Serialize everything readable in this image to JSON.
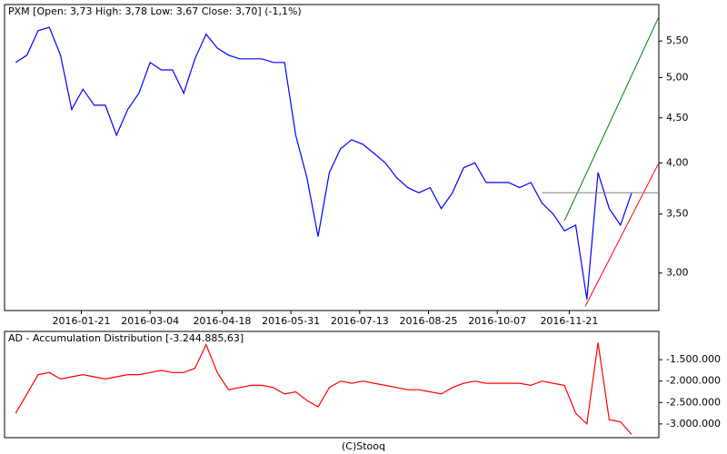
{
  "chart_data": [
    {
      "type": "line",
      "title": "PXM [Open: 3,73  High: 3,78  Low: 3,67  Close: 3,70]  (-1,1%)",
      "x": [
        "2015-12-11",
        "2015-12-18",
        "2015-12-25",
        "2016-01-01",
        "2016-01-08",
        "2016-01-15",
        "2016-01-22",
        "2016-01-29",
        "2016-02-05",
        "2016-02-12",
        "2016-02-19",
        "2016-02-26",
        "2016-03-04",
        "2016-03-11",
        "2016-03-18",
        "2016-03-25",
        "2016-04-01",
        "2016-04-08",
        "2016-04-15",
        "2016-04-22",
        "2016-04-29",
        "2016-05-06",
        "2016-05-13",
        "2016-05-20",
        "2016-05-27",
        "2016-06-03",
        "2016-06-10",
        "2016-06-17",
        "2016-06-24",
        "2016-07-01",
        "2016-07-08",
        "2016-07-15",
        "2016-07-22",
        "2016-07-29",
        "2016-08-05",
        "2016-08-12",
        "2016-08-19",
        "2016-08-26",
        "2016-09-02",
        "2016-09-09",
        "2016-09-16",
        "2016-09-23",
        "2016-09-30",
        "2016-10-07",
        "2016-10-14",
        "2016-10-21",
        "2016-10-28",
        "2016-11-04",
        "2016-11-11",
        "2016-11-18",
        "2016-11-25",
        "2016-12-02",
        "2016-12-09",
        "2016-12-16",
        "2016-12-23",
        "2016-12-30"
      ],
      "values": [
        5.2,
        5.3,
        5.65,
        5.7,
        5.3,
        4.6,
        4.85,
        4.65,
        4.65,
        4.3,
        4.6,
        4.8,
        5.2,
        5.1,
        5.1,
        4.8,
        5.25,
        5.6,
        5.4,
        5.3,
        5.25,
        5.25,
        5.25,
        5.2,
        5.2,
        4.3,
        3.85,
        3.3,
        3.9,
        4.15,
        4.25,
        4.2,
        4.1,
        4.0,
        3.85,
        3.75,
        3.7,
        3.75,
        3.55,
        3.7,
        3.95,
        4.0,
        3.8,
        3.8,
        3.8,
        3.75,
        3.8,
        3.6,
        3.5,
        3.35,
        3.4,
        2.8,
        3.9,
        3.55,
        3.4,
        3.7
      ],
      "color": "#0000ff",
      "log_scale": true,
      "xlim": [
        "2015-12-04",
        "2017-01-16"
      ],
      "xticks": [
        "2016-01-21",
        "2016-03-04",
        "2016-04-18",
        "2016-05-31",
        "2016-07-13",
        "2016-08-25",
        "2016-10-07",
        "2016-11-21"
      ],
      "ylim": [
        2.72,
        6.05
      ],
      "yticks": [
        {
          "value": 3,
          "label": "3,00"
        },
        {
          "value": 3.5,
          "label": "3,50"
        },
        {
          "value": 4,
          "label": "4,00"
        },
        {
          "value": 4.5,
          "label": "4,50"
        },
        {
          "value": 5,
          "label": "5,00"
        },
        {
          "value": 5.5,
          "label": "5,50"
        }
      ],
      "trendlines": [
        {
          "color": "#008000",
          "x": [
            "2016-11-18",
            "2017-01-16"
          ],
          "values": [
            3.44,
            5.86
          ]
        },
        {
          "color": "#ff0000",
          "x": [
            "2016-12-01",
            "2017-01-16"
          ],
          "values": [
            2.75,
            4.0
          ]
        }
      ],
      "reference_line": {
        "x": "2016-11-04",
        "value": 3.7,
        "color": "#808080"
      }
    },
    {
      "type": "line",
      "title": "AD - Accumulation Distribution [-3.244.885,63]",
      "x": [
        "2015-12-11",
        "2015-12-18",
        "2015-12-25",
        "2016-01-01",
        "2016-01-08",
        "2016-01-15",
        "2016-01-22",
        "2016-01-29",
        "2016-02-05",
        "2016-02-12",
        "2016-02-19",
        "2016-02-26",
        "2016-03-04",
        "2016-03-11",
        "2016-03-18",
        "2016-03-25",
        "2016-04-01",
        "2016-04-08",
        "2016-04-15",
        "2016-04-22",
        "2016-04-29",
        "2016-05-06",
        "2016-05-13",
        "2016-05-20",
        "2016-05-27",
        "2016-06-03",
        "2016-06-10",
        "2016-06-17",
        "2016-06-24",
        "2016-07-01",
        "2016-07-08",
        "2016-07-15",
        "2016-07-22",
        "2016-07-29",
        "2016-08-05",
        "2016-08-12",
        "2016-08-19",
        "2016-08-26",
        "2016-09-02",
        "2016-09-09",
        "2016-09-16",
        "2016-09-23",
        "2016-09-30",
        "2016-10-07",
        "2016-10-14",
        "2016-10-21",
        "2016-10-28",
        "2016-11-04",
        "2016-11-11",
        "2016-11-18",
        "2016-11-25",
        "2016-12-02",
        "2016-12-09",
        "2016-12-16",
        "2016-12-23",
        "2016-12-30"
      ],
      "values": [
        -2750000,
        -2300000,
        -1850000,
        -1800000,
        -1950000,
        -1900000,
        -1850000,
        -1900000,
        -1950000,
        -1900000,
        -1850000,
        -1850000,
        -1800000,
        -1750000,
        -1800000,
        -1800000,
        -1700000,
        -1150000,
        -1800000,
        -2200000,
        -2150000,
        -2100000,
        -2100000,
        -2150000,
        -2300000,
        -2250000,
        -2450000,
        -2600000,
        -2150000,
        -2000000,
        -2050000,
        -2000000,
        -2050000,
        -2100000,
        -2150000,
        -2200000,
        -2200000,
        -2250000,
        -2300000,
        -2150000,
        -2050000,
        -2000000,
        -2050000,
        -2050000,
        -2050000,
        -2050000,
        -2100000,
        -2000000,
        -2050000,
        -2100000,
        -2750000,
        -3000000,
        -1100000,
        -2900000,
        -2950000,
        -3244885.63
      ],
      "color": "#ff0000",
      "log_scale": false,
      "xlim": [
        "2015-12-04",
        "2017-01-16"
      ],
      "ylim": [
        -3320000,
        -840000
      ],
      "yticks": [
        {
          "value": -3000000,
          "label": "-3.000.000"
        },
        {
          "value": -2500000,
          "label": "-2.500.000"
        },
        {
          "value": -2000000,
          "label": "-2.000.000"
        },
        {
          "value": -1500000,
          "label": "-1.500.000"
        }
      ]
    }
  ],
  "footer": "(C)Stooq"
}
